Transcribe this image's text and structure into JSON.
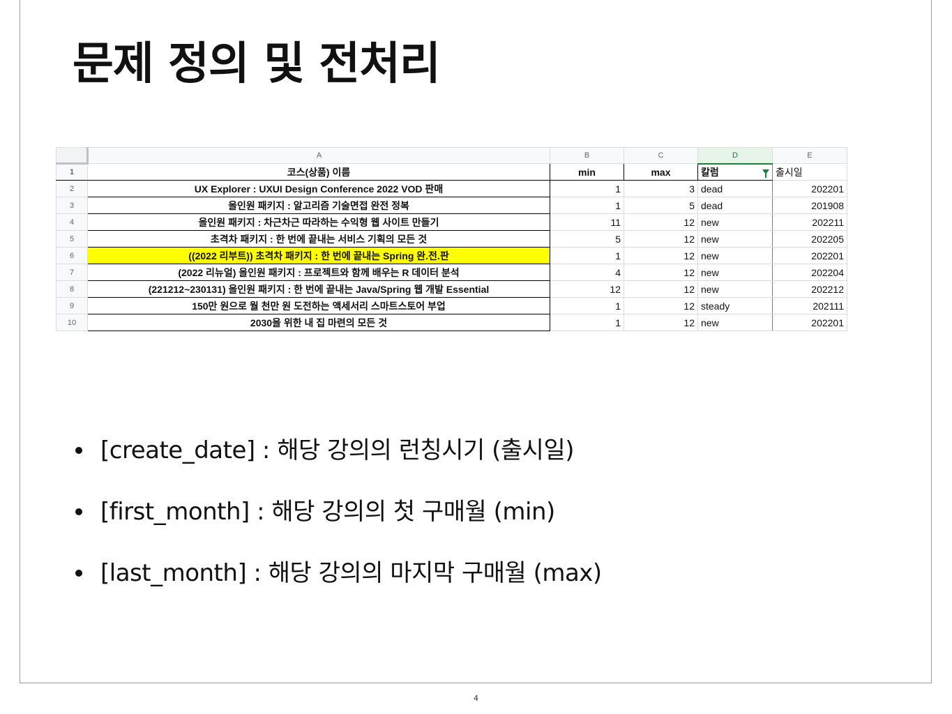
{
  "slide": {
    "title": "문제 정의 및 전처리",
    "page_number": "4"
  },
  "sheet": {
    "column_letters": [
      "A",
      "B",
      "C",
      "D",
      "E"
    ],
    "header_row": {
      "row": "1",
      "name": "코스(상품) 이름",
      "min": "min",
      "max": "max",
      "label": "칼럼",
      "date": "출시일"
    },
    "rows": [
      {
        "row": "2",
        "name": "UX Explorer : UXUI Design Conference 2022 VOD 판매",
        "min": "1",
        "max": "3",
        "label": "dead",
        "date": "202201"
      },
      {
        "row": "3",
        "name": "올인원 패키지 : 알고리즘 기술면접 완전 정복",
        "min": "1",
        "max": "5",
        "label": "dead",
        "date": "201908"
      },
      {
        "row": "4",
        "name": "올인원 패키지 : 차근차근 따라하는 수익형 웹 사이트 만들기",
        "min": "11",
        "max": "12",
        "label": "new",
        "date": "202211"
      },
      {
        "row": "5",
        "name": "초격차 패키지 : 한 번에 끝내는 서비스 기획의 모든 것",
        "min": "5",
        "max": "12",
        "label": "new",
        "date": "202205"
      },
      {
        "row": "6",
        "name": "((2022 리부트)) 초격차 패키지 : 한 번에 끝내는 Spring 완.전.판",
        "min": "1",
        "max": "12",
        "label": "new",
        "date": "202201"
      },
      {
        "row": "7",
        "name": "(2022 리뉴얼) 올인원 패키지 : 프로젝트와 함께 배우는 R 데이터 분석",
        "min": "4",
        "max": "12",
        "label": "new",
        "date": "202204"
      },
      {
        "row": "8",
        "name": "(221212~230131) 올인원 패키지 : 한 번에 끝내는 Java/Spring 웹 개발 Essential",
        "min": "12",
        "max": "12",
        "label": "new",
        "date": "202212"
      },
      {
        "row": "9",
        "name": "150만 원으로 월 천만 원 도전하는 액세서리 스마트스토어 부업",
        "min": "1",
        "max": "12",
        "label": "steady",
        "date": "202111"
      },
      {
        "row": "10",
        "name": "2030을 위한 내 집 마련의 모든 것",
        "min": "1",
        "max": "12",
        "label": "new",
        "date": "202201"
      }
    ],
    "highlight_color": "#ffff00",
    "filter_color": "#188038"
  },
  "bullets": [
    "[create_date] : 해당 강의의 런칭시기 (출시일)",
    "[first_month] : 해당 강의의 첫 구매월 (min)",
    "[last_month] : 해당 강의의 마지막 구매월 (max)"
  ]
}
